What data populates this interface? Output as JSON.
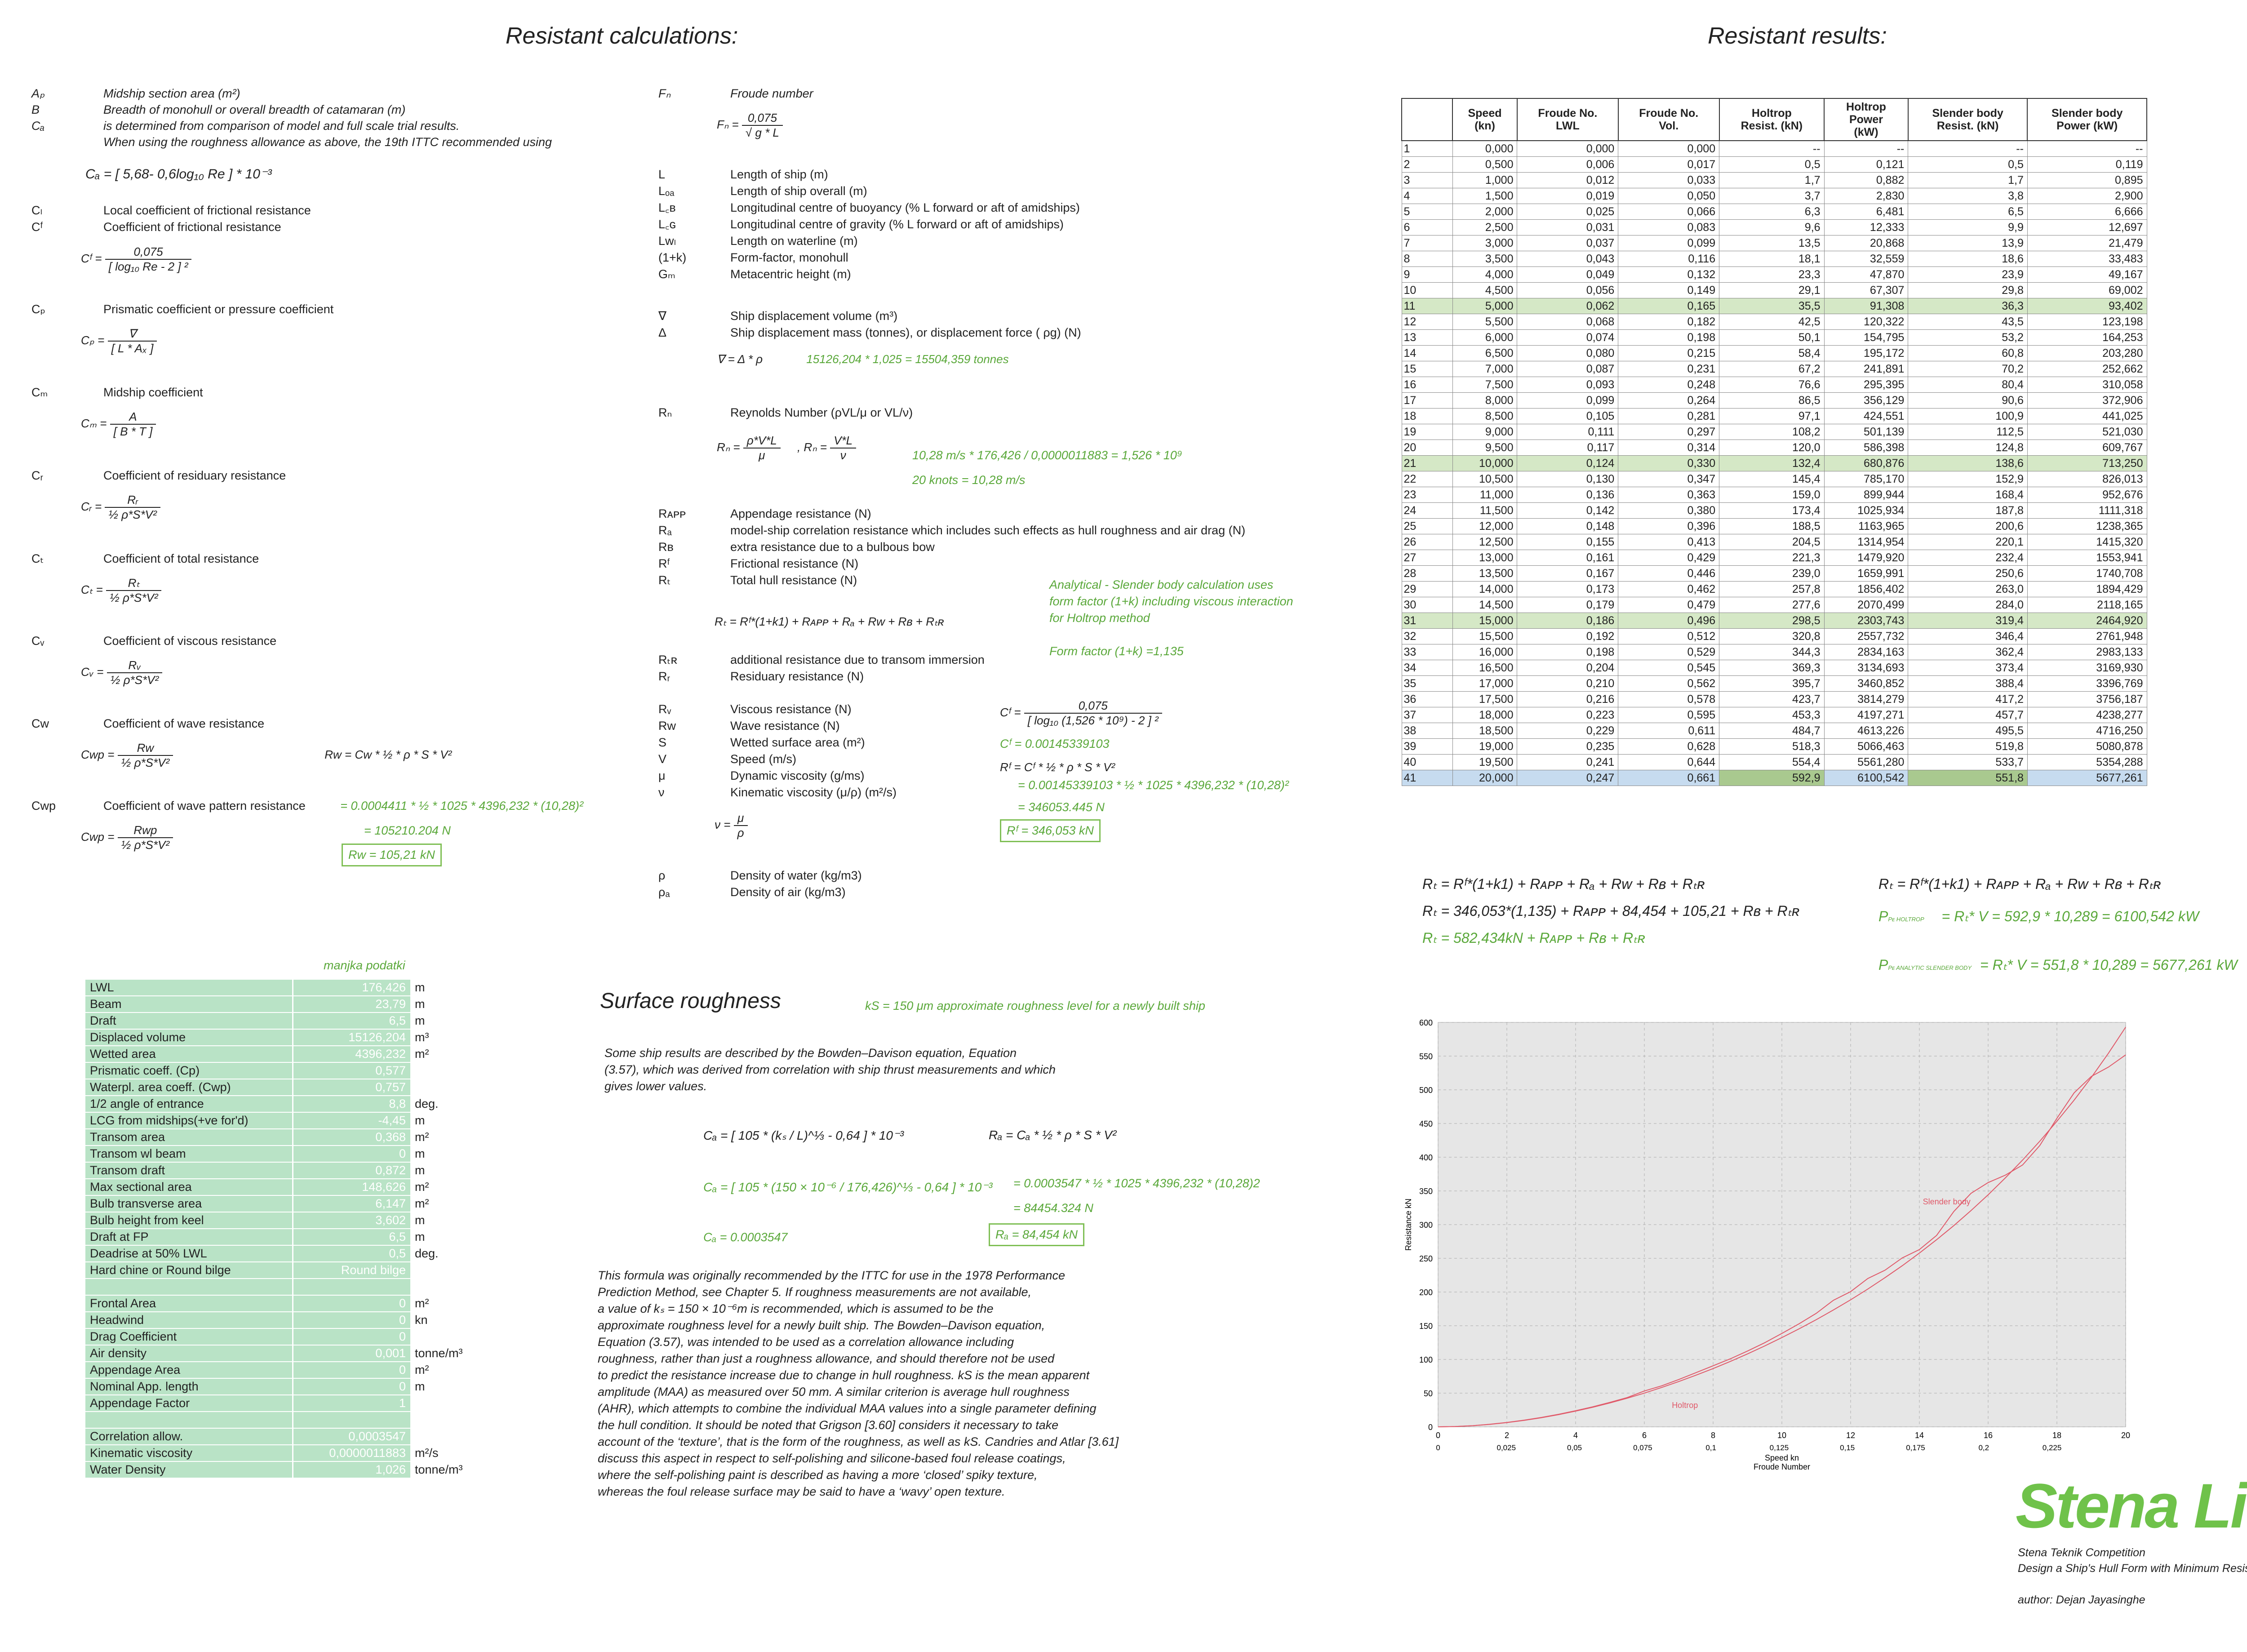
{
  "titles": {
    "calc": "Resistant calculations:",
    "results": "Resistant results:",
    "surface": "Surface roughness"
  },
  "left_defs": [
    {
      "sym": "Aₚ",
      "text": "Midship section area (m²)"
    },
    {
      "sym": "B",
      "text": "Breadth of monohull or overall breadth of catamaran (m)"
    },
    {
      "sym": "Cₐ",
      "text": "is determined from comparison of model and full scale trial results."
    },
    {
      "sym": "",
      "text": "When using the roughness allowance as above, the 19th ITTC recommended using"
    }
  ],
  "ca_formula": "Cₐ = [ 5,68- 0,6log₁₀ Re ] * 10⁻³",
  "cl_defs": [
    {
      "sym": "Cₗ",
      "text": "Local coefficient of frictional resistance"
    },
    {
      "sym": "Cᶠ",
      "text": "Coefficient of frictional resistance"
    }
  ],
  "cf_num": "0,075",
  "cf_den": "[ log₁₀ Re - 2 ] ²",
  "cf_lhs": "Cᶠ =",
  "cp": {
    "sym": "Cₚ",
    "text": "Prismatic coefficient or pressure coefficient",
    "lhs": "Cₚ =",
    "num": "∇",
    "den": "[ L * Aₓ ]"
  },
  "cm": {
    "sym": "Cₘ",
    "text": "Midship coefficient",
    "lhs": "Cₘ =",
    "num": "A",
    "den": "[ B * T ]"
  },
  "cr": {
    "sym": "Cᵣ",
    "text": "Coefficient of residuary resistance",
    "lhs": "Cᵣ =",
    "num": "Rᵣ",
    "den": "½ ρ*S*V²"
  },
  "ct": {
    "sym": "Cₜ",
    "text": "Coefficient of total resistance",
    "lhs": "Cₜ =",
    "num": "Rₜ",
    "den": "½ ρ*S*V²"
  },
  "cv": {
    "sym": "Cᵥ",
    "text": "Coefficient of viscous resistance",
    "lhs": "Cᵥ =",
    "num": "Rᵥ",
    "den": "½ ρ*S*V²"
  },
  "cw": {
    "sym": "Cw",
    "text": "Coefficient of wave resistance",
    "lhs": "Cwp =",
    "num": "Rw",
    "den": "½ ρ*S*V²",
    "rw": "Rw = Cw * ½ * ρ * S * V²"
  },
  "cwp": {
    "sym": "Cwp",
    "text": "Coefficient of wave pattern resistance",
    "lhs": "Cwp =",
    "num": "Rwp",
    "den": "½ ρ*S*V²",
    "g1": "= 0.0004411 *  ½  * 1025 * 4396,232  * (10,28)²",
    "g2": "= 105210.204 N",
    "box": "Rw = 105,21 kN"
  },
  "mid_froude": {
    "sym": "Fₙ",
    "text": "Froude number",
    "lhs": "Fₙ =",
    "num": "0,075",
    "den": "√ g * L"
  },
  "mid_defs": [
    {
      "sym": "L",
      "text": "Length of ship (m)"
    },
    {
      "sym": "Lₒₐ",
      "text": "Length of ship overall (m)"
    },
    {
      "sym": "L꜀ʙ",
      "text": "Longitudinal centre of buoyancy (% L forward or aft of amidships)"
    },
    {
      "sym": "L꜀ɢ",
      "text": "Longitudinal centre of gravity (% L forward or aft of amidships)"
    },
    {
      "sym": "Lwₗ",
      "text": "Length on waterline (m)"
    },
    {
      "sym": "(1+k)",
      "text": "Form-factor, monohull"
    },
    {
      "sym": "Gₘ",
      "text": "Metacentric height (m)"
    }
  ],
  "disp": [
    {
      "sym": "∇",
      "text": "Ship displacement volume (m³)"
    },
    {
      "sym": "Δ",
      "text": "Ship displacement mass (tonnes), or displacement force (  ρg) (N)"
    }
  ],
  "disp_formula": "∇ = Δ * ρ",
  "disp_green": "15126,204 * 1,025 =  15504,359 tonnes",
  "reynolds": {
    "sym": "Rₙ",
    "text": "Reynolds Number (ρVL/μ or VL/ν)",
    "f1_lhs": "Rₙ =",
    "f1_num": "ρ*V*L",
    "f1_den": "μ",
    "f2_lhs": "Rₙ =",
    "f2_num": "V*L",
    "f2_den": "ν",
    "g1": "10,28 m/s * 176,426 / 0,0000011883 = 1,526 * 10⁹",
    "g2": "20 knots = 10,28 m/s"
  },
  "res_defs": [
    {
      "sym": "Rᴀᴘᴘ",
      "text": "Appendage resistance (N)"
    },
    {
      "sym": "Rₐ",
      "text": "model-ship correlation resistance which includes such effects as hull roughness and air drag (N)"
    },
    {
      "sym": "Rʙ",
      "text": "extra resistance due to a bulbous bow"
    },
    {
      "sym": "Rᶠ",
      "text": "Frictional resistance (N)"
    },
    {
      "sym": "Rₜ",
      "text": "Total hull resistance (N)"
    }
  ],
  "analytical": [
    "Analytical - Slender body calculation uses",
    "form factor (1+k) including viscous interaction",
    "for Holtrop method",
    "",
    "Form factor (1+k) =1,135"
  ],
  "rt_formula": "Rₜ = Rᶠ*(1+k1) + Rᴀᴘᴘ + Rₐ + Rw + Rʙ + Rₜʀ",
  "res_defs2": [
    {
      "sym": "Rₜʀ",
      "text": "additional resistance due to transom immersion"
    },
    {
      "sym": "Rᵣ",
      "text": "Residuary resistance (N)"
    }
  ],
  "res_defs3": [
    {
      "sym": "Rᵥ",
      "text": "Viscous resistance (N)"
    },
    {
      "sym": "Rw",
      "text": "Wave resistance (N)"
    },
    {
      "sym": "S",
      "text": "Wetted surface area (m²)"
    },
    {
      "sym": "V",
      "text": "Speed (m/s)"
    },
    {
      "sym": "μ",
      "text": "Dynamic viscosity (g/ms)"
    },
    {
      "sym": "ν",
      "text": "Kinematic viscosity (μ/ρ) (m²/s)"
    }
  ],
  "cf_calc": {
    "lhs": "Cᶠ =",
    "num": "0,075",
    "den": "[ log₁₀ (1,526 * 10⁹) - 2 ] ²",
    "g1": "Cᶠ =  0.00145339103",
    "rf": "Rᶠ = Cᶠ *   ½  * ρ * S * V²",
    "g2": "= 0.00145339103 *  ½  * 1025 * 4396,232  * (10,28)²",
    "g3": "= 346053.445 N",
    "box": "Rᶠ = 346,053 kN"
  },
  "nu_formula": {
    "lhs": "ν =",
    "num": "μ",
    "den": "ρ"
  },
  "dens": [
    {
      "sym": "ρ",
      "text": "Density of water (kg/m3)"
    },
    {
      "sym": "ρₐ",
      "text": "Density of air (kg/m3)"
    }
  ],
  "manjka": "manjka podatki",
  "inputs": [
    [
      "LWL",
      "176,426",
      "m"
    ],
    [
      "Beam",
      "23,79",
      "m"
    ],
    [
      "Draft",
      "6,5",
      "m"
    ],
    [
      "Displaced volume",
      "15126,204",
      "m³"
    ],
    [
      "Wetted area",
      "4396,232",
      "m²"
    ],
    [
      "Prismatic coeff. (Cp)",
      "0,577",
      ""
    ],
    [
      "Waterpl. area coeff. (Cwp)",
      "0,757",
      ""
    ],
    [
      "1/2 angle of entrance",
      "8,8",
      "deg."
    ],
    [
      "LCG from midships(+ve for'd)",
      "-4,45",
      "m"
    ],
    [
      "Transom area",
      "0,368",
      "m²"
    ],
    [
      "Transom wl beam",
      "0",
      "m"
    ],
    [
      "Transom draft",
      "0,872",
      "m"
    ],
    [
      "Max sectional area",
      "148,626",
      "m²"
    ],
    [
      "Bulb transverse area",
      "6,147",
      "m²"
    ],
    [
      "Bulb height from keel",
      "3,602",
      "m"
    ],
    [
      "Draft at FP",
      "6,5",
      "m"
    ],
    [
      "Deadrise at 50% LWL",
      "0,5",
      "deg."
    ],
    [
      "Hard chine or Round bilge",
      "Round bilge",
      ""
    ],
    [
      "",
      "",
      ""
    ],
    [
      "Frontal Area",
      "0",
      "m²"
    ],
    [
      "Headwind",
      "0",
      "kn"
    ],
    [
      "Drag Coefficient",
      "0",
      ""
    ],
    [
      "Air density",
      "0,001",
      "tonne/m³"
    ],
    [
      "Appendage Area",
      "0",
      "m²"
    ],
    [
      "Nominal App. length",
      "0",
      "m"
    ],
    [
      "Appendage Factor",
      "1",
      ""
    ],
    [
      "",
      "",
      ""
    ],
    [
      "Correlation allow.",
      "0,0003547",
      ""
    ],
    [
      "Kinematic viscosity",
      "0,0000011883",
      "m²/s"
    ],
    [
      "Water Density",
      "1,026",
      "tonne/m³"
    ]
  ],
  "ks_note": "kS = 150 μm approximate roughness level for a newly built ship",
  "surface_intro": [
    "Some ship results are described by the Bowden–Davison equation, Equation",
    "(3.57), which was derived from correlation with ship thrust measurements and which",
    "gives lower values."
  ],
  "ca_bd": {
    "lhs": "Cₐ =",
    "body": "[ 105 * (kₛ / L)^⅓ - 0,64 ] * 10⁻³",
    "green": "[ 105 * (150 × 10⁻⁶ / 176,426)^⅓ - 0,64 ] * 10⁻³",
    "ca": "Cₐ =  0.0003547"
  },
  "ra": {
    "f": "Rₐ = Cₐ * ½ * ρ * S * V²",
    "g1": "= 0.0003547 *  ½  * 1025 * 4396,232  * (10,28)2",
    "g2": "= 84454.324 N",
    "box": "Rₐ = 84,454 kN"
  },
  "surface_text": [
    "This formula was originally recommended by the ITTC for use in the 1978 Performance",
    "Prediction Method, see Chapter 5. If roughness measurements are not available,",
    "a value of kₛ = 150 × 10⁻⁶m is recommended, which is assumed to be the",
    "approximate roughness level for a newly built ship. The Bowden–Davison equation,",
    "Equation (3.57), was intended to be used as a correlation allowance including",
    "roughness, rather than just a roughness allowance, and should therefore not be used",
    "to predict the resistance increase due to change in hull roughness. kS is the mean apparent",
    "amplitude (MAA) as measured over 50 mm. A similar criterion is average hull roughness",
    "(AHR), which attempts to combine the individual MAA values into a single parameter defining",
    " the hull condition. It should be noted that Grigson [3.60] considers it necessary to take",
    "account of the ‘texture’, that is the form of the roughness, as well as kS. Candries and Atlar [3.61]",
    " discuss this aspect in respect to self-polishing and silicone-based foul release coatings,",
    "where  the self-polishing paint is described as having a more ‘closed’ spiky texture,",
    "whereas the foul release surface may be said to have a ‘wavy’ open texture."
  ],
  "table_headers": [
    "",
    "Speed\n(kn)",
    "Froude No.\nLWL",
    "Froude No.\nVol.",
    "Holtrop\nResist. (kN)",
    "Holtrop\nPower\n(kW)",
    "Slender body\nResist. (kN)",
    "Slender body\nPower (kW)"
  ],
  "table_rows": [
    [
      "1",
      "0,000",
      "0,000",
      "0,000",
      "--",
      "--",
      "--",
      "--"
    ],
    [
      "2",
      "0,500",
      "0,006",
      "0,017",
      "0,5",
      "0,121",
      "0,5",
      "0,119"
    ],
    [
      "3",
      "1,000",
      "0,012",
      "0,033",
      "1,7",
      "0,882",
      "1,7",
      "0,895"
    ],
    [
      "4",
      "1,500",
      "0,019",
      "0,050",
      "3,7",
      "2,830",
      "3,8",
      "2,900"
    ],
    [
      "5",
      "2,000",
      "0,025",
      "0,066",
      "6,3",
      "6,481",
      "6,5",
      "6,666"
    ],
    [
      "6",
      "2,500",
      "0,031",
      "0,083",
      "9,6",
      "12,333",
      "9,9",
      "12,697"
    ],
    [
      "7",
      "3,000",
      "0,037",
      "0,099",
      "13,5",
      "20,868",
      "13,9",
      "21,479"
    ],
    [
      "8",
      "3,500",
      "0,043",
      "0,116",
      "18,1",
      "32,559",
      "18,6",
      "33,483"
    ],
    [
      "9",
      "4,000",
      "0,049",
      "0,132",
      "23,3",
      "47,870",
      "23,9",
      "49,167"
    ],
    [
      "10",
      "4,500",
      "0,056",
      "0,149",
      "29,1",
      "67,307",
      "29,8",
      "69,002"
    ],
    [
      "11",
      "5,000",
      "0,062",
      "0,165",
      "35,5",
      "91,308",
      "36,3",
      "93,402"
    ],
    [
      "12",
      "5,500",
      "0,068",
      "0,182",
      "42,5",
      "120,322",
      "43,5",
      "123,198"
    ],
    [
      "13",
      "6,000",
      "0,074",
      "0,198",
      "50,1",
      "154,795",
      "53,2",
      "164,253"
    ],
    [
      "14",
      "6,500",
      "0,080",
      "0,215",
      "58,4",
      "195,172",
      "60,8",
      "203,280"
    ],
    [
      "15",
      "7,000",
      "0,087",
      "0,231",
      "67,2",
      "241,891",
      "70,2",
      "252,662"
    ],
    [
      "16",
      "7,500",
      "0,093",
      "0,248",
      "76,6",
      "295,395",
      "80,4",
      "310,058"
    ],
    [
      "17",
      "8,000",
      "0,099",
      "0,264",
      "86,5",
      "356,129",
      "90,6",
      "372,906"
    ],
    [
      "18",
      "8,500",
      "0,105",
      "0,281",
      "97,1",
      "424,551",
      "100,9",
      "441,025"
    ],
    [
      "19",
      "9,000",
      "0,111",
      "0,297",
      "108,2",
      "501,139",
      "112,5",
      "521,030"
    ],
    [
      "20",
      "9,500",
      "0,117",
      "0,314",
      "120,0",
      "586,398",
      "124,8",
      "609,767"
    ],
    [
      "21",
      "10,000",
      "0,124",
      "0,330",
      "132,4",
      "680,876",
      "138,6",
      "713,250"
    ],
    [
      "22",
      "10,500",
      "0,130",
      "0,347",
      "145,4",
      "785,170",
      "152,9",
      "826,013"
    ],
    [
      "23",
      "11,000",
      "0,136",
      "0,363",
      "159,0",
      "899,944",
      "168,4",
      "952,676"
    ],
    [
      "24",
      "11,500",
      "0,142",
      "0,380",
      "173,4",
      "1025,934",
      "187,8",
      "1111,318"
    ],
    [
      "25",
      "12,000",
      "0,148",
      "0,396",
      "188,5",
      "1163,965",
      "200,6",
      "1238,365"
    ],
    [
      "26",
      "12,500",
      "0,155",
      "0,413",
      "204,5",
      "1314,954",
      "220,1",
      "1415,320"
    ],
    [
      "27",
      "13,000",
      "0,161",
      "0,429",
      "221,3",
      "1479,920",
      "232,4",
      "1553,941"
    ],
    [
      "28",
      "13,500",
      "0,167",
      "0,446",
      "239,0",
      "1659,991",
      "250,6",
      "1740,708"
    ],
    [
      "29",
      "14,000",
      "0,173",
      "0,462",
      "257,8",
      "1856,402",
      "263,0",
      "1894,429"
    ],
    [
      "30",
      "14,500",
      "0,179",
      "0,479",
      "277,6",
      "2070,499",
      "284,0",
      "2118,165"
    ],
    [
      "31",
      "15,000",
      "0,186",
      "0,496",
      "298,5",
      "2303,743",
      "319,4",
      "2464,920"
    ],
    [
      "32",
      "15,500",
      "0,192",
      "0,512",
      "320,8",
      "2557,732",
      "346,4",
      "2761,948"
    ],
    [
      "33",
      "16,000",
      "0,198",
      "0,529",
      "344,3",
      "2834,163",
      "362,4",
      "2983,133"
    ],
    [
      "34",
      "16,500",
      "0,204",
      "0,545",
      "369,3",
      "3134,693",
      "373,4",
      "3169,930"
    ],
    [
      "35",
      "17,000",
      "0,210",
      "0,562",
      "395,7",
      "3460,852",
      "388,4",
      "3396,769"
    ],
    [
      "36",
      "17,500",
      "0,216",
      "0,578",
      "423,7",
      "3814,279",
      "417,2",
      "3756,187"
    ],
    [
      "37",
      "18,000",
      "0,223",
      "0,595",
      "453,3",
      "4197,271",
      "457,7",
      "4238,277"
    ],
    [
      "38",
      "18,500",
      "0,229",
      "0,611",
      "484,7",
      "4613,226",
      "495,5",
      "4716,250"
    ],
    [
      "39",
      "19,000",
      "0,235",
      "0,628",
      "518,3",
      "5066,463",
      "519,8",
      "5080,878"
    ],
    [
      "40",
      "19,500",
      "0,241",
      "0,644",
      "554,4",
      "5561,280",
      "533,7",
      "5354,288"
    ],
    [
      "41",
      "20,000",
      "0,247",
      "0,661",
      "592,9",
      "6100,542",
      "551,8",
      "5677,261"
    ]
  ],
  "highlight_rows": [
    10,
    20,
    30
  ],
  "blue_row": 40,
  "results_formulas": {
    "l1": "Rₜ = Rᶠ*(1+k1) + Rᴀᴘᴘ + Rₐ + Rw + Rʙ + Rₜʀ",
    "l2": "Rₜ = 346,053*(1,135) + Rᴀᴘᴘ + 84,454 + 105,21 + Rʙ + Rₜʀ",
    "l3": "Rₜ = 582,434kN + Rᴀᴘᴘ + Rʙ + Rₜʀ",
    "r1": "Rₜ = Rᶠ*(1+k1) + Rᴀᴘᴘ + Rₐ + Rw + Rʙ + Rₜʀ",
    "r2_lbl": "Pᴇ HOLTROP",
    "r2": "=  Rₜ* V =  592,9 * 10,289 =  6100,542  kW",
    "r3_lbl": "Pᴇ ANALYTIC SLENDER BODY",
    "r3": "=  Rₜ* V =  551,8 * 10,289 = 5677,261  kW"
  },
  "chart_data": {
    "type": "line",
    "x": [
      0,
      0.5,
      1,
      1.5,
      2,
      2.5,
      3,
      3.5,
      4,
      4.5,
      5,
      5.5,
      6,
      6.5,
      7,
      7.5,
      8,
      8.5,
      9,
      9.5,
      10,
      10.5,
      11,
      11.5,
      12,
      12.5,
      13,
      13.5,
      14,
      14.5,
      15,
      15.5,
      16,
      16.5,
      17,
      17.5,
      18,
      18.5,
      19,
      19.5,
      20
    ],
    "series": [
      {
        "name": "Holtrop",
        "values": [
          0,
          0.5,
          1.7,
          3.7,
          6.3,
          9.6,
          13.5,
          18.1,
          23.3,
          29.1,
          35.5,
          42.5,
          50.1,
          58.4,
          67.2,
          76.6,
          86.5,
          97.1,
          108.2,
          120.0,
          132.4,
          145.4,
          159.0,
          173.4,
          188.5,
          204.5,
          221.3,
          239.0,
          257.8,
          277.6,
          298.5,
          320.8,
          344.3,
          369.3,
          395.7,
          423.7,
          453.3,
          484.7,
          518.3,
          554.4,
          592.9
        ]
      },
      {
        "name": "Slender body",
        "values": [
          0,
          0.5,
          1.7,
          3.8,
          6.5,
          9.9,
          13.9,
          18.6,
          23.9,
          29.8,
          36.3,
          43.5,
          53.2,
          60.8,
          70.2,
          80.4,
          90.6,
          100.9,
          112.5,
          124.8,
          138.6,
          152.9,
          168.4,
          187.8,
          200.6,
          220.1,
          232.4,
          250.6,
          263.0,
          284.0,
          319.4,
          346.4,
          362.4,
          373.4,
          388.4,
          417.2,
          457.7,
          495.5,
          519.8,
          533.7,
          551.8
        ]
      }
    ],
    "xlabel": "Speed  kn",
    "xlabel2": "Froude Number",
    "ylabel": "Resistance  kN",
    "xticks": [
      0,
      2,
      4,
      6,
      8,
      10,
      12,
      14,
      16,
      18,
      20
    ],
    "froude_ticks": [
      "0",
      "0,025",
      "0,05",
      "0,075",
      "0,1",
      "0,125",
      "0,15",
      "0,175",
      "0,2",
      "0,225"
    ],
    "yticks": [
      0,
      50,
      100,
      150,
      200,
      250,
      300,
      350,
      400,
      450,
      500,
      550,
      600
    ],
    "xlim": [
      0,
      20
    ],
    "ylim": [
      0,
      600
    ],
    "grid": true,
    "colors": {
      "line": "#e05a6a",
      "bg": "#e6e6e6"
    }
  },
  "logo": "Stena Line",
  "footer": [
    "Stena Teknik Competition",
    "Design a Ship's Hull Form with Minimum Resistance",
    "",
    "author: Dejan Jayasinghe"
  ]
}
